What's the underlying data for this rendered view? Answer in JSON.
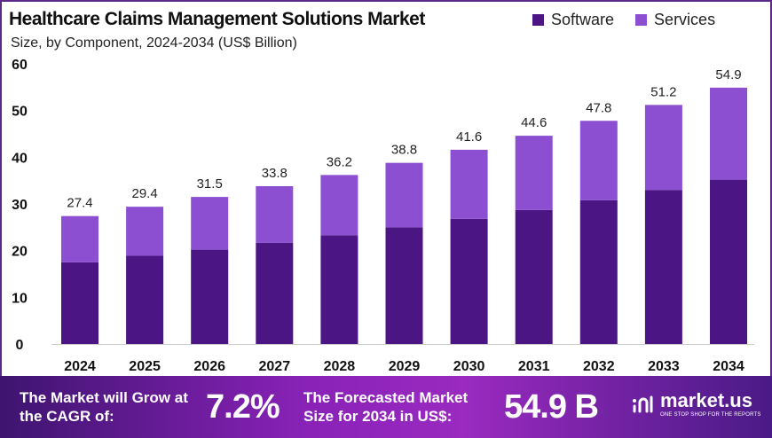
{
  "chart_data": {
    "type": "bar",
    "stacked": true,
    "title": "Healthcare Claims Management Solutions Market",
    "subtitle": "Size, by Component, 2024-2034 (US$ Billion)",
    "categories": [
      "2024",
      "2025",
      "2026",
      "2027",
      "2028",
      "2029",
      "2030",
      "2031",
      "2032",
      "2033",
      "2034"
    ],
    "series": [
      {
        "name": "Software",
        "color": "#4b1683",
        "values": [
          17.5,
          18.9,
          20.2,
          21.7,
          23.3,
          25.0,
          26.8,
          28.7,
          30.8,
          33.0,
          35.2
        ]
      },
      {
        "name": "Services",
        "color": "#8c4fd1",
        "values": [
          9.9,
          10.5,
          11.3,
          12.1,
          12.9,
          13.8,
          14.8,
          15.9,
          17.0,
          18.2,
          19.7
        ]
      }
    ],
    "totals": [
      "27.4",
      "29.4",
      "31.5",
      "33.8",
      "36.2",
      "38.8",
      "41.6",
      "44.6",
      "47.8",
      "51.2",
      "54.9"
    ],
    "yticks": [
      "0",
      "10",
      "20",
      "30",
      "40",
      "50",
      "60"
    ],
    "ylim": [
      0,
      60
    ],
    "grid": false,
    "legend": "top-right"
  },
  "footer": {
    "cagr_text": "The Market will Grow at the CAGR of:",
    "cagr_value": "7.2%",
    "forecast_text": "The Forecasted Market Size for 2034 in US$:",
    "forecast_value": "54.9 B",
    "logo": "market.us",
    "logo_tagline": "ONE STOP SHOP FOR THE REPORTS"
  }
}
